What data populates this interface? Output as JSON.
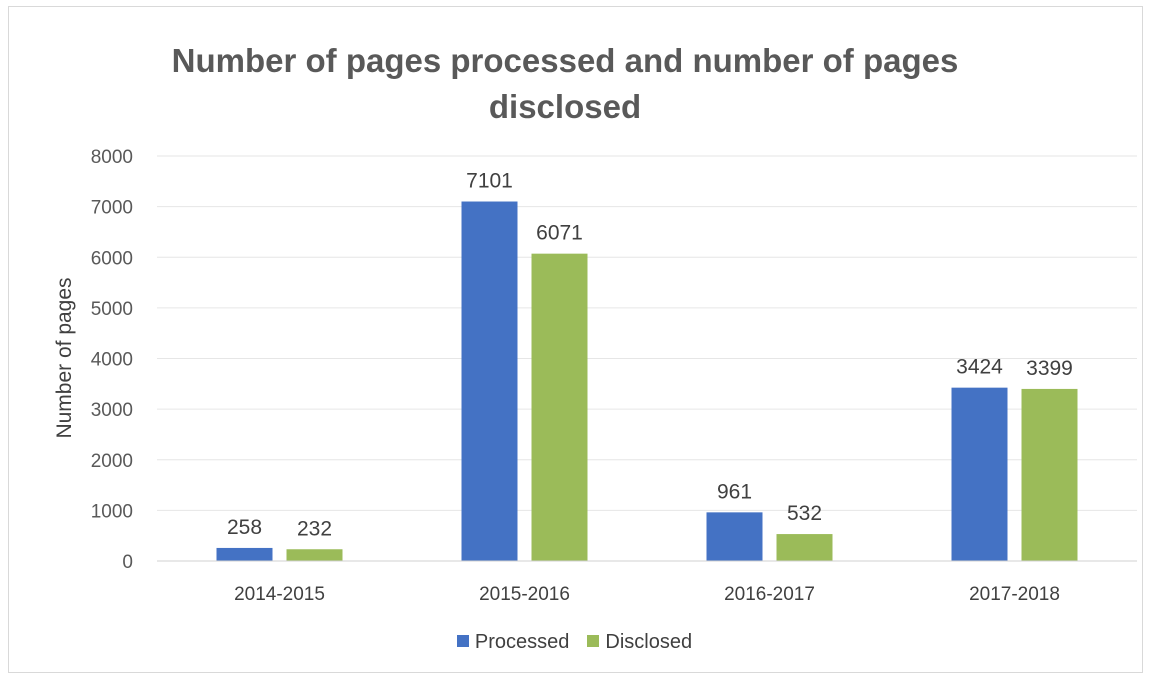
{
  "chart_data": {
    "type": "bar",
    "title": "Number of pages processed and number of pages disclosed",
    "title_lines": [
      "Number of pages processed and number of pages",
      "disclosed"
    ],
    "xlabel": "",
    "ylabel": "Number of pages",
    "ylim": [
      0,
      8000
    ],
    "yticks": [
      0,
      1000,
      2000,
      3000,
      4000,
      5000,
      6000,
      7000,
      8000
    ],
    "grid": true,
    "legend_position": "bottom",
    "categories": [
      "2014-2015",
      "2015-2016",
      "2016-2017",
      "2017-2018"
    ],
    "series": [
      {
        "name": "Processed",
        "color": "#4472c4",
        "values": [
          258,
          7101,
          961,
          3424
        ]
      },
      {
        "name": "Disclosed",
        "color": "#9bbb59",
        "values": [
          232,
          6071,
          532,
          3399
        ]
      }
    ]
  }
}
